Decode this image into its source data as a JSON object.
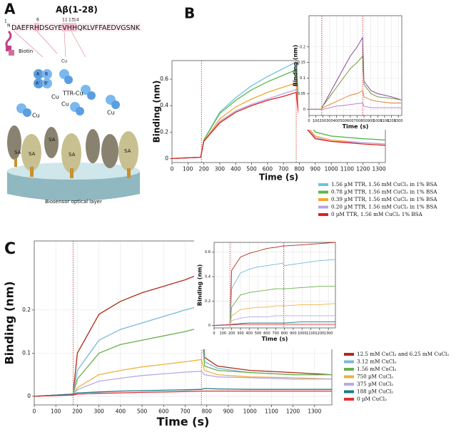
{
  "panel_a": {
    "label": "A",
    "peptide_title": "Aβ(1-28)",
    "n_terminus": "N",
    "sequence": "DAEFRHDSGYEVHHQKLVFFAEDVGSNK",
    "residue_numbers": [
      "1",
      "6",
      "11",
      "13",
      "14"
    ],
    "biotin": "Biotin",
    "copper_labels": [
      "Cu",
      "Cu",
      "Cu",
      "Cu",
      "Cu"
    ],
    "ttr_cu": "TTR-Cu",
    "subunits": [
      "A",
      "B",
      "A'",
      "B'"
    ],
    "streptavidin": [
      "SA",
      "SA",
      "SA",
      "SA",
      "SA"
    ],
    "layer": "Biosensor optical layer"
  },
  "chart_data": [
    {
      "type": "line",
      "panel_label": "B",
      "xlabel": "Time (s)",
      "ylabel": "Binding (nm)",
      "xlim": [
        0,
        1340
      ],
      "ylim": [
        -0.03,
        0.74
      ],
      "xticks": [
        0,
        100,
        200,
        300,
        400,
        500,
        600,
        700,
        800,
        900,
        1000,
        1100,
        1200,
        1300
      ],
      "yticks": [
        0,
        0.2,
        0.4,
        0.6
      ],
      "grid": false,
      "vlines": [
        185,
        780
      ],
      "x": [
        0,
        180,
        200,
        300,
        400,
        500,
        600,
        700,
        780,
        800,
        900,
        1000,
        1200,
        1340
      ],
      "series": [
        {
          "name": "1.56 µM TTR, 1.56 mM CuCl₂ in 1% BSA",
          "color": "#6cc3e0",
          "values": [
            0,
            0.01,
            0.14,
            0.35,
            0.46,
            0.55,
            0.62,
            0.68,
            0.73,
            0.38,
            0.2,
            0.17,
            0.15,
            0.14
          ]
        },
        {
          "name": "0.78 µM TTR, 1.56 mM CuCl₂ in 1% BSA",
          "color": "#5cb84c",
          "values": [
            0,
            0.01,
            0.14,
            0.34,
            0.44,
            0.52,
            0.58,
            0.63,
            0.67,
            0.36,
            0.2,
            0.17,
            0.15,
            0.14
          ]
        },
        {
          "name": "0.39 µM TTR, 1.56 mM CuCl₂ in 1% BSA",
          "color": "#f0a830",
          "values": [
            0,
            0.01,
            0.13,
            0.3,
            0.39,
            0.45,
            0.5,
            0.54,
            0.57,
            0.32,
            0.17,
            0.14,
            0.12,
            0.11
          ]
        },
        {
          "name": "0.20 µM TTR, 1.56 mM CuCl₂ in 1% BSA",
          "color": "#b4a4e4",
          "values": [
            0,
            0.01,
            0.13,
            0.28,
            0.36,
            0.41,
            0.45,
            0.49,
            0.52,
            0.3,
            0.16,
            0.13,
            0.12,
            0.11
          ]
        },
        {
          "name": "0  µM TTR, 1.56 mM CuCl₂ 1% BSA",
          "color": "#e02222",
          "values": [
            0,
            0.01,
            0.13,
            0.27,
            0.35,
            0.4,
            0.44,
            0.47,
            0.5,
            0.29,
            0.15,
            0.13,
            0.11,
            0.1
          ]
        }
      ]
    },
    {
      "type": "line",
      "xlabel": "Time (s)",
      "ylabel": "Binding (nm)",
      "xlim": [
        0,
        1350
      ],
      "ylim": [
        -0.02,
        0.3
      ],
      "xticks": [
        0,
        100,
        200,
        300,
        400,
        500,
        600,
        700,
        800,
        900,
        1000,
        1100,
        1200,
        1300
      ],
      "yticks": [
        0,
        0.05,
        0.1,
        0.15,
        0.2
      ],
      "grid": true,
      "vlines": [
        185,
        780
      ],
      "x": [
        0,
        180,
        200,
        300,
        400,
        500,
        600,
        700,
        780,
        800,
        900,
        1000,
        1200,
        1340
      ],
      "series": [
        {
          "color": "#7a3c8c",
          "values": [
            0,
            0,
            0.01,
            0.05,
            0.09,
            0.13,
            0.17,
            0.2,
            0.23,
            0.09,
            0.06,
            0.05,
            0.04,
            0.03
          ]
        },
        {
          "color": "#6a8a2c",
          "values": [
            0,
            0,
            0.01,
            0.04,
            0.07,
            0.1,
            0.13,
            0.15,
            0.17,
            0.08,
            0.05,
            0.04,
            0.035,
            0.03
          ]
        },
        {
          "color": "#e07a30",
          "values": [
            0,
            0,
            0.005,
            0.015,
            0.025,
            0.035,
            0.045,
            0.05,
            0.06,
            0.04,
            0.03,
            0.025,
            0.02,
            0.02
          ]
        },
        {
          "color": "#c070d0",
          "values": [
            0,
            0,
            0,
            0.005,
            0.01,
            0.012,
            0.015,
            0.018,
            0.02,
            0.01,
            0.005,
            0.005,
            0.005,
            0.005
          ]
        }
      ]
    },
    {
      "type": "line",
      "panel_label": "C",
      "xlabel": "Time (s)",
      "ylabel": "Binding (nm)",
      "xlim": [
        0,
        1380
      ],
      "ylim": [
        -0.02,
        0.36
      ],
      "xticks": [
        0,
        100,
        200,
        300,
        400,
        500,
        600,
        700,
        800,
        900,
        1000,
        1100,
        1200,
        1300
      ],
      "yticks": [
        0,
        0.1,
        0.2
      ],
      "grid": true,
      "vlines": [
        180,
        775
      ],
      "x": [
        0,
        180,
        200,
        300,
        400,
        500,
        600,
        700,
        775,
        790,
        850,
        1000,
        1200,
        1380
      ],
      "series": [
        {
          "name": "12.5 mM CuCl₂ and 6.25 mM CuCl₂",
          "color": "#b02a1a",
          "values": [
            0,
            0.005,
            0.1,
            0.19,
            0.22,
            0.24,
            0.255,
            0.27,
            0.285,
            0.09,
            0.07,
            0.06,
            0.055,
            0.05
          ]
        },
        {
          "name": "3.12 mM CuCl₂",
          "color": "#7ab8d8",
          "values": [
            0,
            0.005,
            0.06,
            0.13,
            0.155,
            0.17,
            0.185,
            0.2,
            0.21,
            0.08,
            0.065,
            0.055,
            0.05,
            0.05
          ]
        },
        {
          "name": "1.56 mM CuCl₂",
          "color": "#6ab04c",
          "values": [
            0,
            0.005,
            0.04,
            0.1,
            0.12,
            0.13,
            0.14,
            0.15,
            0.16,
            0.07,
            0.06,
            0.055,
            0.05,
            0.05
          ]
        },
        {
          "name": "750 µM CuCl₂",
          "color": "#f0b040",
          "values": [
            0,
            0.005,
            0.02,
            0.05,
            0.06,
            0.068,
            0.074,
            0.08,
            0.085,
            0.06,
            0.05,
            0.045,
            0.043,
            0.04
          ]
        },
        {
          "name": "375 µM CuCl₂",
          "color": "#b8a8e8",
          "values": [
            0,
            0.005,
            0.015,
            0.035,
            0.042,
            0.048,
            0.052,
            0.056,
            0.058,
            0.05,
            0.045,
            0.043,
            0.04,
            0.04
          ]
        },
        {
          "name": "188 µM CuCl₂",
          "color": "#1a7a8a",
          "values": [
            0,
            0.005,
            0.008,
            0.01,
            0.012,
            0.013,
            0.014,
            0.015,
            0.016,
            0.018,
            0.017,
            0.016,
            0.016,
            0.016
          ]
        },
        {
          "name": "0 µM CuCl₂",
          "color": "#e03030",
          "values": [
            0,
            0.003,
            0.005,
            0.007,
            0.008,
            0.009,
            0.01,
            0.011,
            0.012,
            0.012,
            0.012,
            0.012,
            0.012,
            0.012
          ]
        }
      ]
    },
    {
      "type": "line",
      "xlabel": "Time (s)",
      "ylabel": "Binding (nm)",
      "xlim": [
        0,
        1380
      ],
      "ylim": [
        -0.02,
        0.68
      ],
      "xticks": [
        0,
        100,
        200,
        300,
        400,
        500,
        600,
        700,
        800,
        900,
        1000,
        1100,
        1200,
        1300
      ],
      "yticks": [
        0,
        0.2,
        0.4,
        0.6
      ],
      "grid": true,
      "vlines": [
        180,
        790
      ],
      "x": [
        0,
        180,
        200,
        300,
        400,
        500,
        600,
        700,
        780,
        800,
        1000,
        1200,
        1380
      ],
      "series": [
        {
          "color": "#b02a1a",
          "values": [
            0,
            0.01,
            0.45,
            0.56,
            0.59,
            0.61,
            0.63,
            0.64,
            0.65,
            0.65,
            0.66,
            0.67,
            0.68
          ]
        },
        {
          "color": "#7ab8d8",
          "values": [
            0,
            0.01,
            0.3,
            0.43,
            0.46,
            0.48,
            0.49,
            0.5,
            0.51,
            0.49,
            0.51,
            0.53,
            0.54
          ]
        },
        {
          "color": "#6ab04c",
          "values": [
            0,
            0.01,
            0.15,
            0.25,
            0.27,
            0.28,
            0.29,
            0.3,
            0.3,
            0.3,
            0.31,
            0.32,
            0.32
          ]
        },
        {
          "color": "#f0b040",
          "values": [
            0,
            0.01,
            0.08,
            0.13,
            0.14,
            0.15,
            0.15,
            0.16,
            0.16,
            0.16,
            0.17,
            0.17,
            0.18
          ]
        },
        {
          "color": "#b8a8e8",
          "values": [
            0,
            0.01,
            0.04,
            0.06,
            0.07,
            0.07,
            0.07,
            0.08,
            0.08,
            0.08,
            0.08,
            0.08,
            0.08
          ]
        },
        {
          "color": "#1a7a8a",
          "values": [
            0,
            0.005,
            0.01,
            0.015,
            0.02,
            0.02,
            0.02,
            0.02,
            0.02,
            0.02,
            0.03,
            0.03,
            0.03
          ]
        },
        {
          "color": "#e03030",
          "values": [
            0,
            0.005,
            0.005,
            0.01,
            0.01,
            0.01,
            0.01,
            0.01,
            0.01,
            0.01,
            0.01,
            0.01,
            0.01
          ]
        }
      ]
    }
  ]
}
